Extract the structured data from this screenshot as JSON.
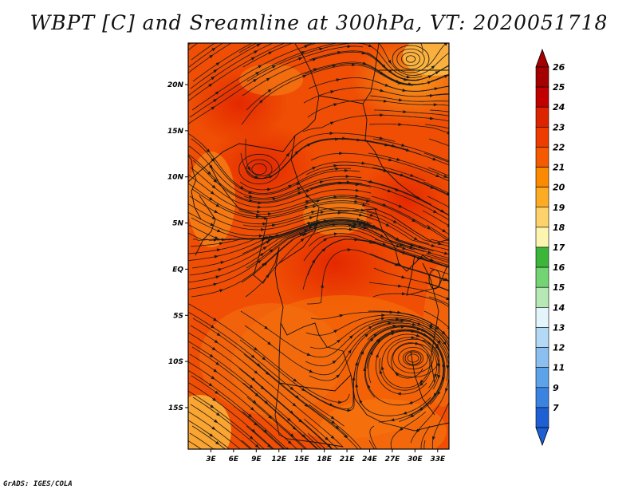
{
  "title": "WBPT [C] and Sreamline at 300hPa, VT: 2020051718",
  "credit": "GrADS: IGES/COLA",
  "map": {
    "lat_labels": [
      "20N",
      "15N",
      "10N",
      "5N",
      "EQ",
      "5S",
      "10S",
      "15S"
    ],
    "lat_values": [
      20,
      15,
      10,
      5,
      0,
      -5,
      -10,
      -15
    ],
    "lon_labels": [
      "3E",
      "6E",
      "9E",
      "12E",
      "15E",
      "18E",
      "21E",
      "24E",
      "27E",
      "30E",
      "33E"
    ],
    "lon_values": [
      3,
      6,
      9,
      12,
      15,
      18,
      21,
      24,
      27,
      30,
      33
    ],
    "lon_range": [
      0,
      34.5
    ],
    "lat_range": [
      -19.5,
      24.5
    ]
  },
  "colorbar": {
    "levels": [
      "26",
      "25",
      "24",
      "23",
      "22",
      "21",
      "20",
      "19",
      "18",
      "17",
      "16",
      "15",
      "14",
      "13",
      "12",
      "11",
      "9",
      "7"
    ],
    "colors": [
      "#a50000",
      "#c10000",
      "#dd2400",
      "#ee3b00",
      "#f65a00",
      "#fb8a00",
      "#fcab23",
      "#fdd26a",
      "#fbf5b0",
      "#3bb63b",
      "#72d472",
      "#b5e8b5",
      "#e4f4fb",
      "#b3d9f6",
      "#8bbff0",
      "#5da3ea",
      "#3b83e0",
      "#1e5fd4"
    ],
    "top_color": "#a50000",
    "bottom_color": "#1e5fd4"
  }
}
